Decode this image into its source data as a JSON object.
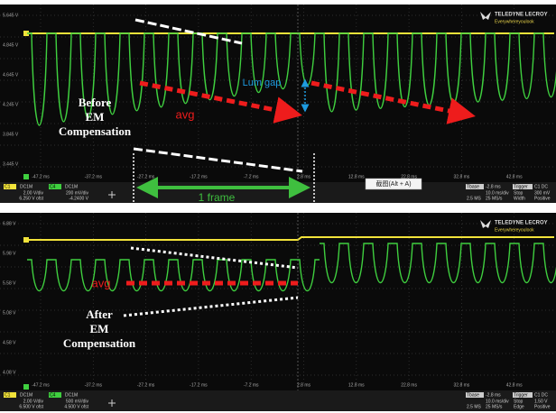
{
  "panels": [
    {
      "brand": "TELEDYNE LECROY",
      "tagline": "Everywhereyoulook",
      "y_labels": [
        "5.645 V",
        "4.845 V",
        "4.645 V",
        "4.245 V",
        "3.845 V",
        "3.445 V"
      ],
      "x_labels": [
        "-47.2 ms",
        "-37.2 ms",
        "-27.2 ms",
        "-17.2 ms",
        "-7.2 ms",
        "2.8 ms",
        "12.8 ms",
        "22.8 ms",
        "32.8 ms",
        "42.8 ms"
      ],
      "channels": [
        {
          "name": "C1",
          "coupling": "DC1M",
          "scale": "2.00 V/div",
          "offset": "6.250 V ofst"
        },
        {
          "name": "C4",
          "coupling": "DC1M",
          "scale": "200 mV/div",
          "offset": "-4.2400 V"
        }
      ],
      "timebase": {
        "label": "Tbase",
        "delay": "-2.8 ms",
        "div": "10.0 ms/div",
        "rate": "2.5 MS",
        "sample": "25 MS/s"
      },
      "trigger": {
        "label": "Trigger",
        "source": "C1 DC",
        "mode": "Stop",
        "value": "300 mV",
        "type": "Width",
        "polarity": "Positive"
      },
      "annotations": {
        "caption": [
          "Before",
          "EM",
          "Compensation"
        ],
        "avg": "avg",
        "lum_gap": "Lum gap",
        "frame": "1 frame",
        "hint": "截图(Alt + A)"
      }
    },
    {
      "brand": "TELEDYNE LECROY",
      "tagline": "Everywhereyoulook",
      "y_labels": [
        "6.88 V",
        "5.98 V",
        "5.58 V",
        "5.08 V",
        "4.58 V",
        "4.08 V"
      ],
      "x_labels": [
        "-47.2 ms",
        "-37.2 ms",
        "-27.2 ms",
        "-17.2 ms",
        "-7.2 ms",
        "2.8 ms",
        "12.8 ms",
        "22.8 ms",
        "32.8 ms",
        "42.8 ms"
      ],
      "channels": [
        {
          "name": "C1",
          "coupling": "DC1M",
          "scale": "2.00 V/div",
          "offset": "6.500 V ofst"
        },
        {
          "name": "C4",
          "coupling": "DC1M",
          "scale": "500 mV/div",
          "offset": "4.500 V ofst"
        }
      ],
      "timebase": {
        "label": "Tbase",
        "delay": "-2.8 ms",
        "div": "10.0 ms/div",
        "rate": "2.5 MS",
        "sample": "25 MS/s"
      },
      "trigger": {
        "label": "Trigger",
        "source": "C1 DC",
        "mode": "Stop",
        "value": "1.50 V",
        "type": "Edge",
        "polarity": "Positive"
      },
      "annotations": {
        "caption": [
          "After",
          "EM",
          "Compensation"
        ],
        "avg": "avg"
      }
    }
  ]
}
